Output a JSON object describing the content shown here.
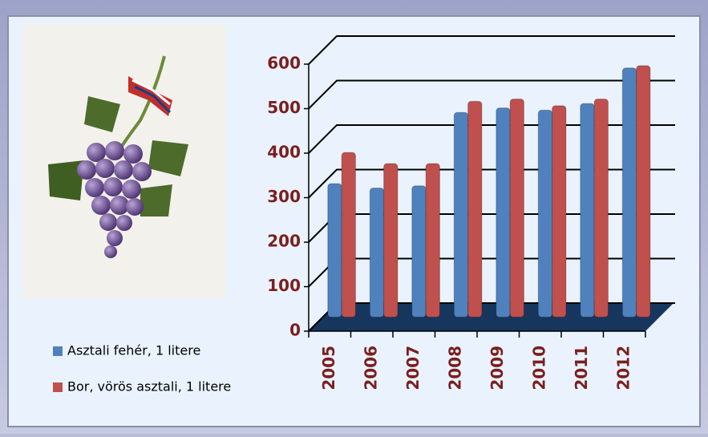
{
  "chart_data": {
    "type": "bar",
    "categories": [
      "2005",
      "2006",
      "2007",
      "2008",
      "2009",
      "2010",
      "2011",
      "2012"
    ],
    "series": [
      {
        "name": "Asztali fehér, 1 litere",
        "color": "#4f81bd",
        "values": [
          300,
          290,
          295,
          460,
          470,
          465,
          480,
          560
        ]
      },
      {
        "name": "Bor, vörös asztali,  1 litere",
        "color": "#c0504d",
        "values": [
          370,
          345,
          345,
          485,
          490,
          475,
          490,
          565
        ]
      }
    ],
    "ylim": [
      0,
      600
    ],
    "yticks": [
      0,
      100,
      200,
      300,
      400,
      500,
      600
    ],
    "grid": true,
    "legend": "bottom-left"
  }
}
